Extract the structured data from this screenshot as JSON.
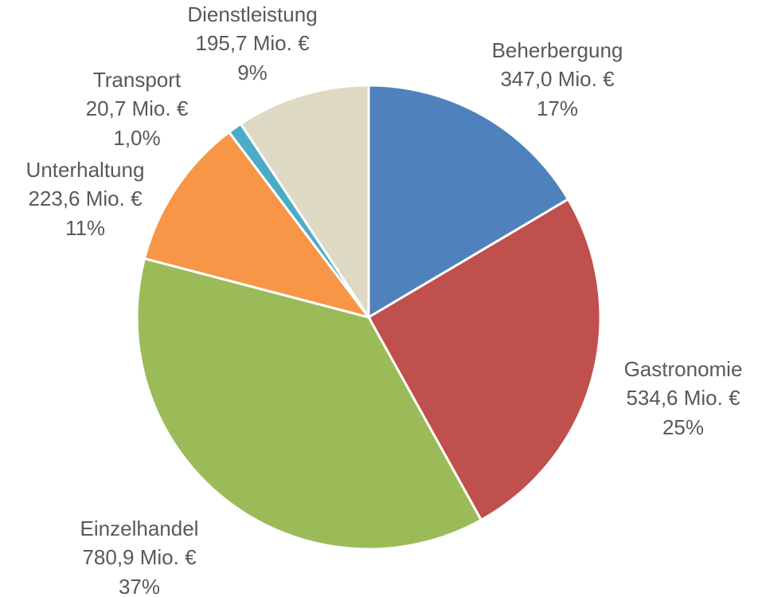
{
  "chart_data": {
    "type": "pie",
    "categories": [
      "Beherbergung",
      "Gastronomie",
      "Einzelhandel",
      "Unterhaltung",
      "Transport",
      "Dienstleistung"
    ],
    "values": [
      347.0,
      534.6,
      780.9,
      223.6,
      20.7,
      195.7
    ],
    "value_labels": [
      "347,0 Mio. €",
      "534,6 Mio. €",
      "780,9 Mio. €",
      "223,6 Mio. €",
      "20,7 Mio. €",
      "195,7 Mio. €"
    ],
    "percentages": [
      17,
      25,
      37,
      11,
      1.0,
      9
    ],
    "percentage_labels": [
      "17%",
      "25%",
      "37%",
      "11%",
      "1,0%",
      "9%"
    ],
    "colors": [
      "#4f81bd",
      "#c0504d",
      "#9bbb59",
      "#f79646",
      "#4bacc6",
      "#ddd9c3"
    ]
  }
}
